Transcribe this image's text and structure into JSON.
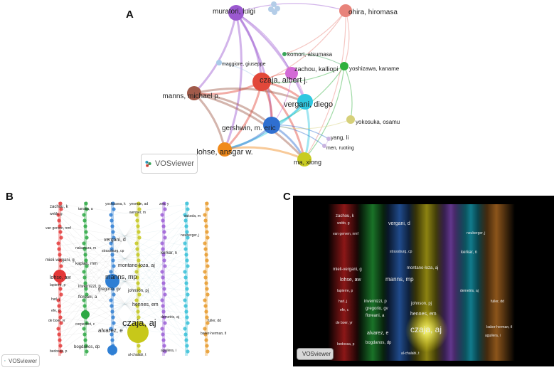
{
  "panel_a": {
    "letter": "A",
    "nodes": [
      {
        "label": "muratori, luigi",
        "color": "#9b59d0"
      },
      {
        "label": "ohira, hiromasa",
        "color": "#e8837a"
      },
      {
        "label": "maggiore, giuseppe",
        "color": "#a9cbe8"
      },
      {
        "label": "komori, atsumasa",
        "color": "#3aa65a"
      },
      {
        "label": "zachou, kalliopi",
        "color": "#d36ad6"
      },
      {
        "label": "yoshizawa, kaname",
        "color": "#2fb03c"
      },
      {
        "label": "czaja, albert j.",
        "color": "#e2483a"
      },
      {
        "label": "manns, michael p.",
        "color": "#a05a4a"
      },
      {
        "label": "vergani, diego",
        "color": "#2fc7e0"
      },
      {
        "label": "gershwin, m. eric",
        "color": "#2f6fd0"
      },
      {
        "label": "yokosuka, osamu",
        "color": "#d6d07a"
      },
      {
        "label": "yang, li",
        "color": "#c9b4e0"
      },
      {
        "label": "men, ruoting",
        "color": "#c9b4e0"
      },
      {
        "label": "lohse, ansgar w.",
        "color": "#f08a1c"
      },
      {
        "label": "ma, xiong",
        "color": "#c8cc22"
      }
    ],
    "badge": "VOSviewer"
  },
  "panel_b": {
    "letter": "B",
    "badge": "VOSviewer",
    "labels": [
      {
        "text": "zachou, k",
        "size": 6
      },
      {
        "text": "webb, g",
        "size": 5
      },
      {
        "text": "van gerven, nmf",
        "size": 5
      },
      {
        "text": "mieli-vergani, g",
        "size": 6
      },
      {
        "text": "lohse, aw",
        "size": 7
      },
      {
        "text": "lapierre, p",
        "size": 5
      },
      {
        "text": "harl, j",
        "size": 5
      },
      {
        "text": "efe, c",
        "size": 5
      },
      {
        "text": "de boer, yr",
        "size": 5
      },
      {
        "text": "bedossa, p",
        "size": 5
      },
      {
        "text": "tanaka, a",
        "size": 5
      },
      {
        "text": "nakamura, m",
        "size": 5
      },
      {
        "text": "kaplan, mm",
        "size": 6
      },
      {
        "text": "invernizzi, p",
        "size": 6
      },
      {
        "text": "floreani, a",
        "size": 6
      },
      {
        "text": "corpechot, c",
        "size": 5
      },
      {
        "text": "bogdanos, dp",
        "size": 6
      },
      {
        "text": "yoshizawa, k",
        "size": 5
      },
      {
        "text": "vergani, d",
        "size": 7
      },
      {
        "text": "strassburg, cp",
        "size": 5
      },
      {
        "text": "manns, mp",
        "size": 9
      },
      {
        "text": "gregorio, gv",
        "size": 6
      },
      {
        "text": "alvarez, e",
        "size": 8
      },
      {
        "text": "yeoman, ad",
        "size": 5
      },
      {
        "text": "wenner, m",
        "size": 5
      },
      {
        "text": "montano-loza, aj",
        "size": 7
      },
      {
        "text": "johnson, pj",
        "size": 6
      },
      {
        "text": "hennes, em",
        "size": 7
      },
      {
        "text": "czaja, aj",
        "size": 13
      },
      {
        "text": "al-chalabi, t",
        "size": 5
      },
      {
        "text": "zen, y",
        "size": 5
      },
      {
        "text": "kerkar, n",
        "size": 6
      },
      {
        "text": "demetris, aj",
        "size": 5
      },
      {
        "text": "sakoda, m",
        "size": 5
      },
      {
        "text": "neuberger, j",
        "size": 5
      },
      {
        "text": "fuller, dd",
        "size": 5
      },
      {
        "text": "baker-herman, tl",
        "size": 5
      },
      {
        "text": "aguilera, i",
        "size": 5
      }
    ]
  },
  "panel_c": {
    "letter": "C",
    "badge": "VOSviewer",
    "labels": [
      {
        "text": "zachou, k",
        "size": 6
      },
      {
        "text": "webb, g",
        "size": 5
      },
      {
        "text": "van gerven, nmf",
        "size": 5
      },
      {
        "text": "mieli-vergani, g",
        "size": 6
      },
      {
        "text": "lohse, aw",
        "size": 7
      },
      {
        "text": "lapierre, p",
        "size": 5
      },
      {
        "text": "harl, j",
        "size": 5
      },
      {
        "text": "efe, c",
        "size": 5
      },
      {
        "text": "de boer, yr",
        "size": 5
      },
      {
        "text": "bedossa, p",
        "size": 5
      },
      {
        "text": "vergani, d",
        "size": 7
      },
      {
        "text": "strassburg, cp",
        "size": 5
      },
      {
        "text": "manns, mp",
        "size": 8
      },
      {
        "text": "invernizzi, p",
        "size": 6
      },
      {
        "text": "gregorio, gv",
        "size": 6
      },
      {
        "text": "floreani, a",
        "size": 6
      },
      {
        "text": "bogdanos, dp",
        "size": 6
      },
      {
        "text": "alvarez, e",
        "size": 7
      },
      {
        "text": "montano-loza, aj",
        "size": 6
      },
      {
        "text": "johnson, pj",
        "size": 6
      },
      {
        "text": "hennes, em",
        "size": 7
      },
      {
        "text": "czaja, aj",
        "size": 12
      },
      {
        "text": "al-chalabi, t",
        "size": 5
      },
      {
        "text": "kerkar, n",
        "size": 6
      },
      {
        "text": "demetris, aj",
        "size": 5
      },
      {
        "text": "neuberger, j",
        "size": 5
      },
      {
        "text": "fuller, dd",
        "size": 5
      },
      {
        "text": "baker-herman, tl",
        "size": 5
      },
      {
        "text": "aguilera, i",
        "size": 5
      }
    ]
  }
}
